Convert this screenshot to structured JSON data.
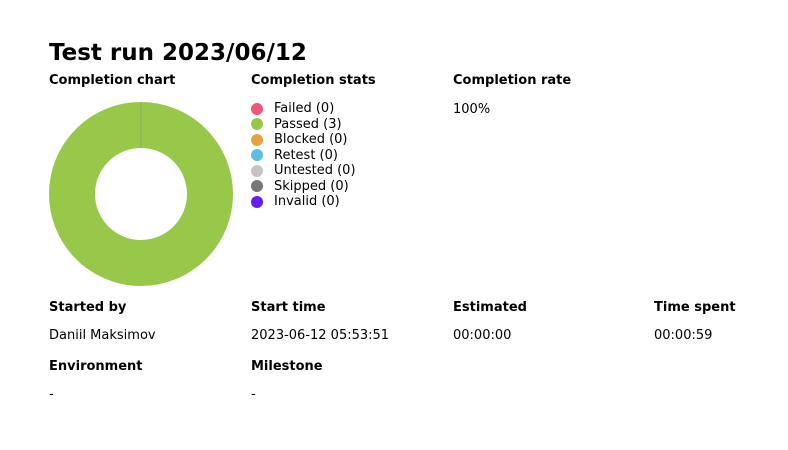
{
  "header": {
    "title": "Test run 2023/06/12"
  },
  "sections": {
    "completion_chart_label": "Completion chart",
    "completion_stats_label": "Completion stats",
    "completion_rate_label": "Completion rate",
    "completion_rate_value": "100%"
  },
  "stats": [
    {
      "label": "Failed (0)",
      "color": "#f0567a"
    },
    {
      "label": "Passed (3)",
      "color": "#97c84a"
    },
    {
      "label": "Blocked (0)",
      "color": "#e8a33d"
    },
    {
      "label": "Retest (0)",
      "color": "#5bc0de"
    },
    {
      "label": "Untested (0)",
      "color": "#c4c4c4"
    },
    {
      "label": "Skipped (0)",
      "color": "#777777"
    },
    {
      "label": "Invalid (0)",
      "color": "#6a1cf0"
    }
  ],
  "chart_data": {
    "type": "pie",
    "categories": [
      "Failed",
      "Passed",
      "Blocked",
      "Retest",
      "Untested",
      "Skipped",
      "Invalid"
    ],
    "values": [
      0,
      3,
      0,
      0,
      0,
      0,
      0
    ],
    "colors": [
      "#f0567a",
      "#97c84a",
      "#e8a33d",
      "#5bc0de",
      "#c4c4c4",
      "#777777",
      "#6a1cf0"
    ],
    "donut": true,
    "title": ""
  },
  "details": {
    "started_by_label": "Started by",
    "started_by_value": "Daniil Maksimov",
    "start_time_label": "Start time",
    "start_time_value": "2023-06-12 05:53:51",
    "estimated_label": "Estimated",
    "estimated_value": "00:00:00",
    "time_spent_label": "Time spent",
    "time_spent_value": "00:00:59",
    "environment_label": "Environment",
    "environment_value": "-",
    "milestone_label": "Milestone",
    "milestone_value": "-"
  }
}
